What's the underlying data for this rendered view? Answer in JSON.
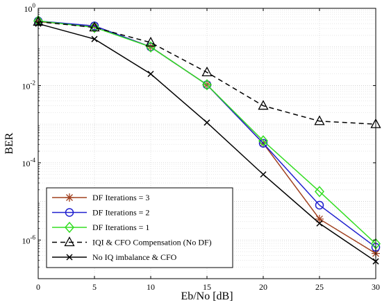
{
  "chart_data": {
    "type": "line",
    "xlabel": "Eb/No [dB]",
    "ylabel": "BER",
    "x": [
      0,
      5,
      10,
      15,
      20,
      25,
      30
    ],
    "xlim": [
      0,
      30
    ],
    "ylim": [
      1e-07,
      1
    ],
    "yscale": "log",
    "grid": true,
    "legend_position": "lower-left",
    "xticks": [
      "0",
      "5",
      "10",
      "15",
      "20",
      "25",
      "30"
    ],
    "yticks": [
      {
        "base": "10",
        "exp": "-6",
        "value": 1e-06
      },
      {
        "base": "10",
        "exp": "-4",
        "value": 0.0001
      },
      {
        "base": "10",
        "exp": "-2",
        "value": 0.01
      },
      {
        "base": "10",
        "exp": "0",
        "value": 1
      }
    ],
    "series": [
      {
        "name": "DF Iterations = 3",
        "color": "#a0401f",
        "marker": "asterisk",
        "dash": "solid",
        "values": [
          0.45,
          0.35,
          0.1,
          0.0105,
          0.00032,
          3.5e-06,
          4.5e-07
        ]
      },
      {
        "name": "DF Iterations = 2",
        "color": "#1f1fcf",
        "marker": "circle",
        "dash": "solid",
        "values": [
          0.47,
          0.35,
          0.1,
          0.0105,
          0.00032,
          8e-06,
          6.5e-07
        ]
      },
      {
        "name": "DF Iterations = 1",
        "color": "#33dd22",
        "marker": "diamond",
        "dash": "solid",
        "values": [
          0.47,
          0.32,
          0.1,
          0.0105,
          0.00037,
          1.8e-05,
          8e-07
        ]
      },
      {
        "name": "IQI & CFO Compensation (No DF)",
        "color": "#000000",
        "marker": "triangle",
        "dash": "dashed",
        "values": [
          0.45,
          0.32,
          0.13,
          0.022,
          0.003,
          0.0012,
          0.001
        ]
      },
      {
        "name": "No IQ imbalance & CFO",
        "color": "#000000",
        "marker": "x",
        "dash": "solid",
        "values": [
          0.4,
          0.16,
          0.02,
          0.0011,
          5e-05,
          2.7e-06,
          2.8e-07
        ]
      }
    ]
  }
}
